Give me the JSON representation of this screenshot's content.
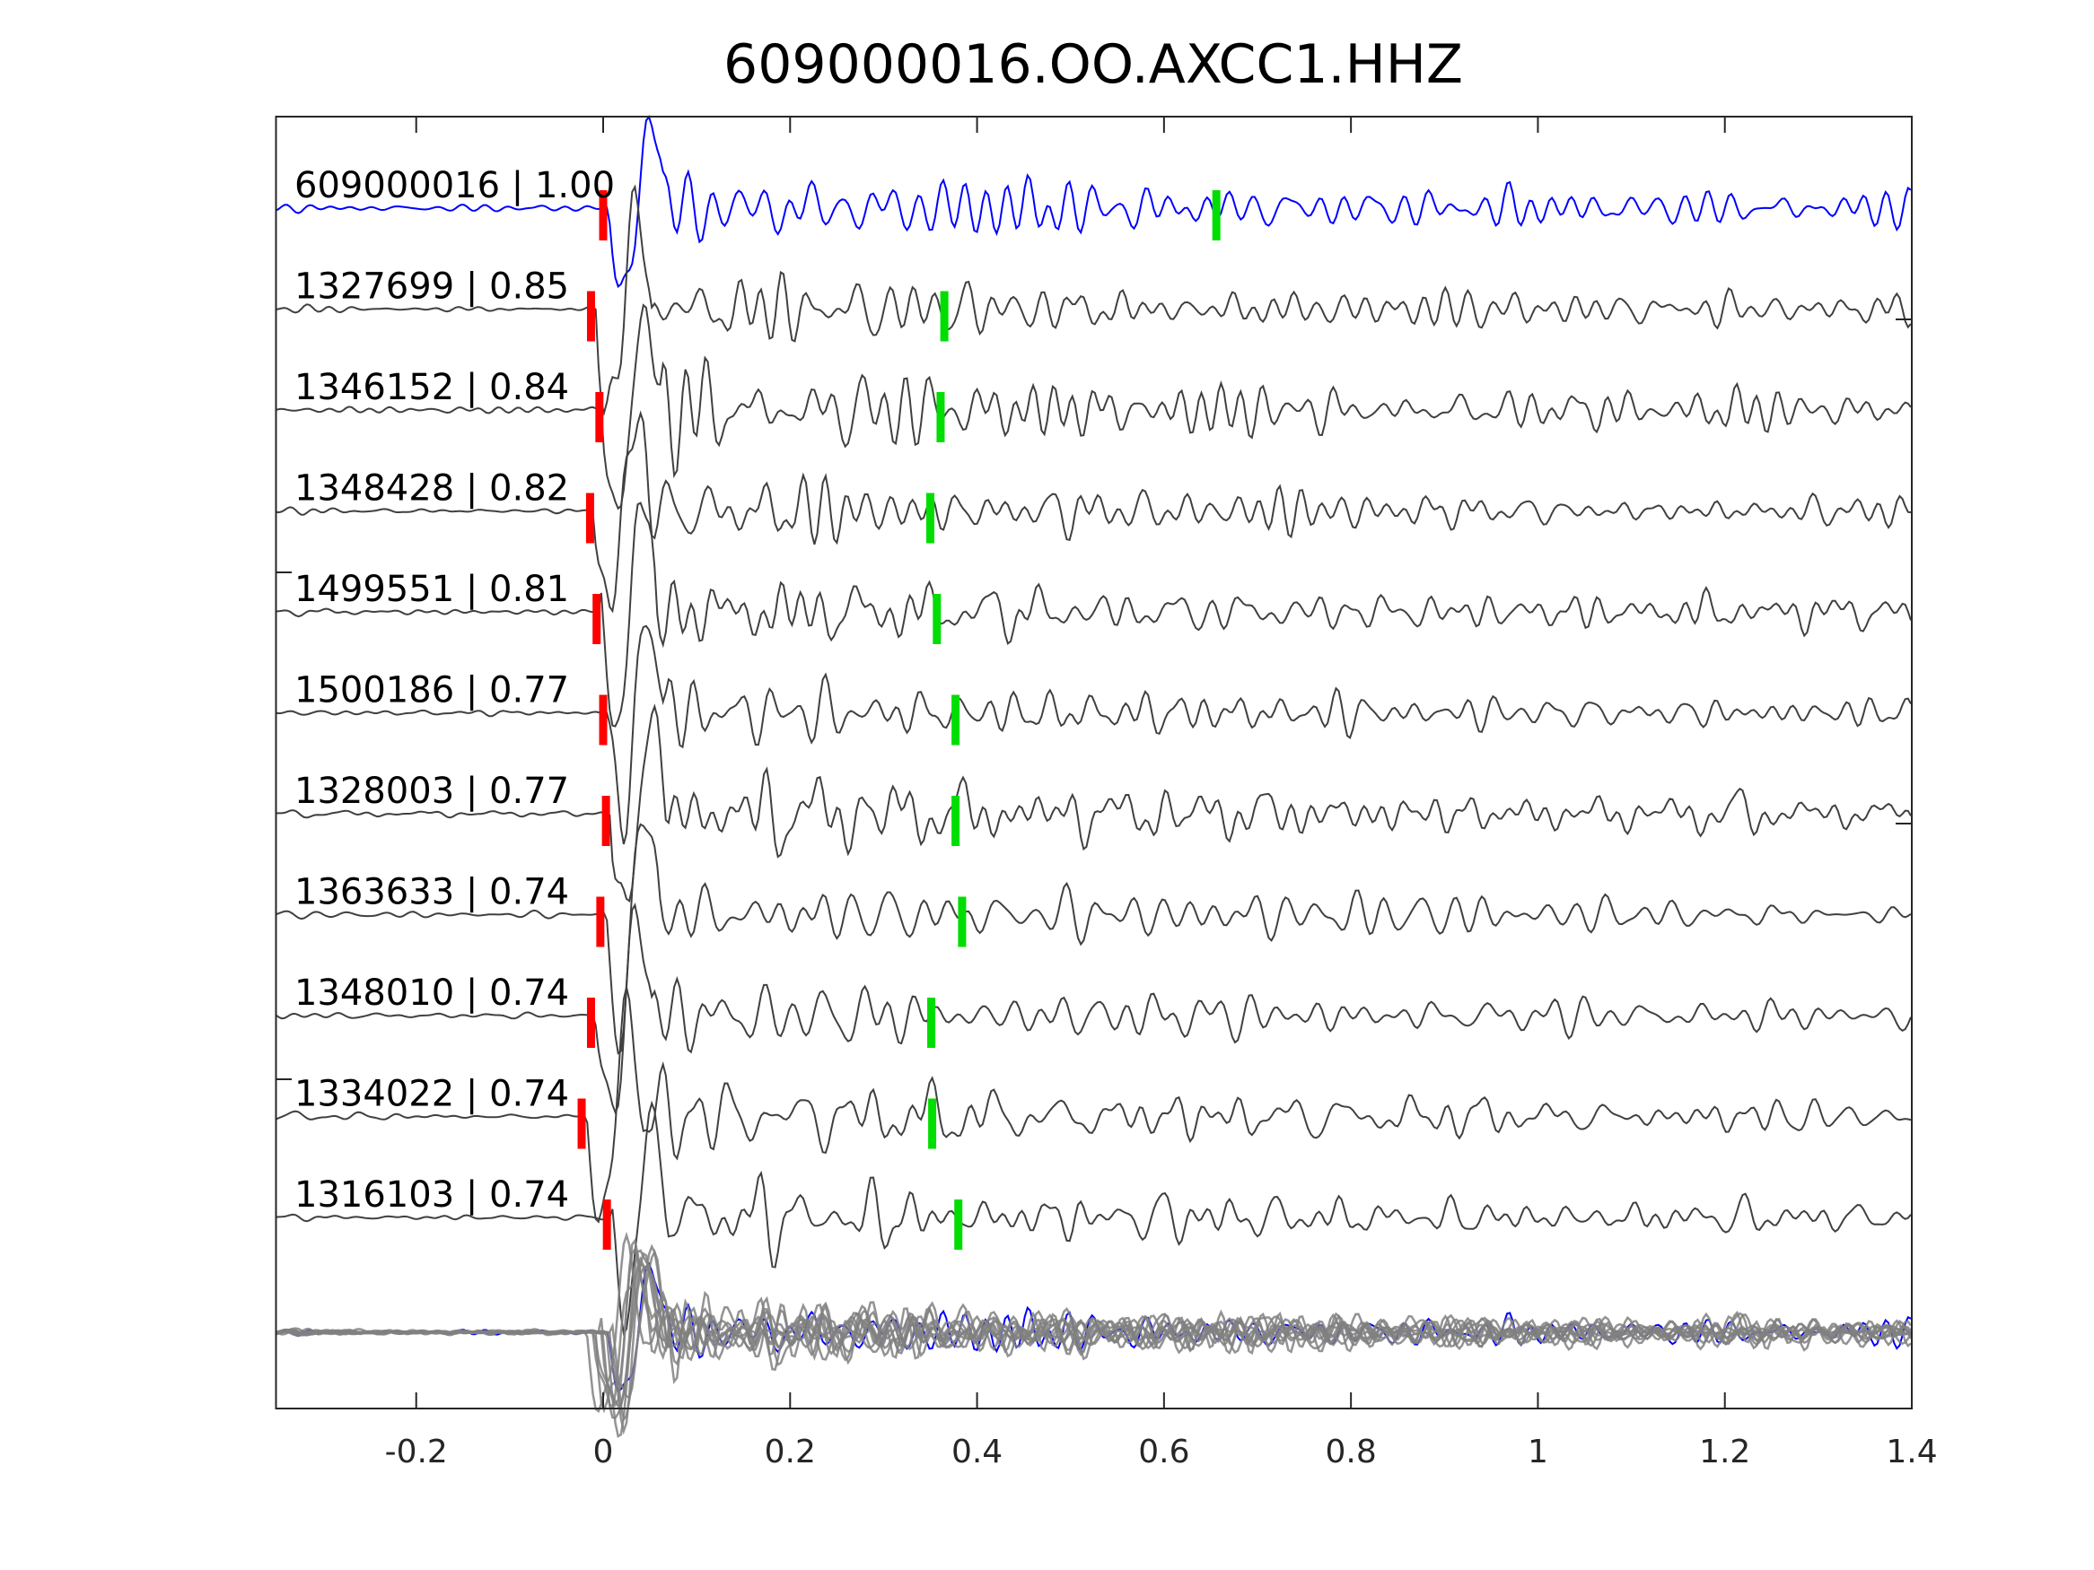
{
  "chart_data": {
    "type": "line",
    "title": "609000016.OO.AXCC1.HHZ",
    "xlabel": "",
    "ylabel": "",
    "xlim": [
      -0.35,
      1.4
    ],
    "xticks": [
      -0.2,
      0,
      0.2,
      0.4,
      0.6,
      0.8,
      1,
      1.2,
      1.4
    ],
    "xtick_labels": [
      "-0.2",
      "0",
      "0.2",
      "0.4",
      "0.6",
      "0.8",
      "1",
      "1.2",
      "1.4"
    ],
    "grid": false,
    "colors": {
      "template": "#0000ff",
      "trace": "#404040",
      "stack": "#808080",
      "p_pick": "#ff0000",
      "s_pick": "#00dd00"
    },
    "traces": [
      {
        "id": "609000016",
        "cc": "1.00",
        "label": "609000016 | 1.00",
        "p_pick": 0.0,
        "s_pick": 0.656,
        "seed": 11,
        "template": true
      },
      {
        "id": "1327699",
        "cc": "0.85",
        "label": "1327699 | 0.85",
        "p_pick": -0.013,
        "s_pick": 0.365,
        "seed": 23
      },
      {
        "id": "1346152",
        "cc": "0.84",
        "label": "1346152 | 0.84",
        "p_pick": -0.004,
        "s_pick": 0.361,
        "seed": 37
      },
      {
        "id": "1348428",
        "cc": "0.82",
        "label": "1348428 | 0.82",
        "p_pick": -0.014,
        "s_pick": 0.35,
        "seed": 41
      },
      {
        "id": "1499551",
        "cc": "0.81",
        "label": "1499551 | 0.81",
        "p_pick": -0.007,
        "s_pick": 0.357,
        "seed": 53
      },
      {
        "id": "1500186",
        "cc": "0.77",
        "label": "1500186 | 0.77",
        "p_pick": 0.0,
        "s_pick": 0.377,
        "seed": 67
      },
      {
        "id": "1328003",
        "cc": "0.77",
        "label": "1328003 | 0.77",
        "p_pick": 0.003,
        "s_pick": 0.377,
        "seed": 71
      },
      {
        "id": "1363633",
        "cc": "0.74",
        "label": "1363633 | 0.74",
        "p_pick": -0.003,
        "s_pick": 0.384,
        "seed": 83
      },
      {
        "id": "1348010",
        "cc": "0.74",
        "label": "1348010 | 0.74",
        "p_pick": -0.013,
        "s_pick": 0.351,
        "seed": 97
      },
      {
        "id": "1334022",
        "cc": "0.74",
        "label": "1334022 | 0.74",
        "p_pick": -0.023,
        "s_pick": 0.352,
        "seed": 101
      },
      {
        "id": "1316103",
        "cc": "0.74",
        "label": "1316103 | 0.74",
        "p_pick": 0.004,
        "s_pick": 0.38,
        "seed": 113
      }
    ],
    "stack": {
      "description_shown": false
    }
  }
}
